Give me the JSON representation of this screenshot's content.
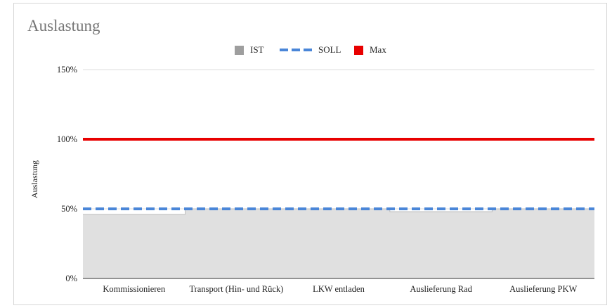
{
  "chart_data": {
    "type": "area",
    "title": "Auslastung",
    "ylabel": "Auslastung",
    "xlabel": "",
    "categories": [
      "Kommissionieren",
      "Transport (Hin- und Rück)",
      "LKW entladen",
      "Auslieferung Rad",
      "Auslieferung PKW"
    ],
    "yticks": [
      "0%",
      "50%",
      "100%",
      "150%"
    ],
    "ylim": [
      0,
      150
    ],
    "grid": true,
    "legend_position": "top",
    "series": [
      {
        "name": "IST",
        "style": "stepped-area",
        "color": "#e0e0e0",
        "legend_color": "#9e9e9e",
        "values": [
          46,
          50,
          50,
          48,
          50
        ]
      },
      {
        "name": "SOLL",
        "style": "dashed-line",
        "color": "#4a86d8",
        "values": [
          50,
          50,
          50,
          50,
          50
        ]
      },
      {
        "name": "Max",
        "style": "line",
        "color": "#e80000",
        "values": [
          100,
          100,
          100,
          100,
          100
        ]
      }
    ]
  }
}
